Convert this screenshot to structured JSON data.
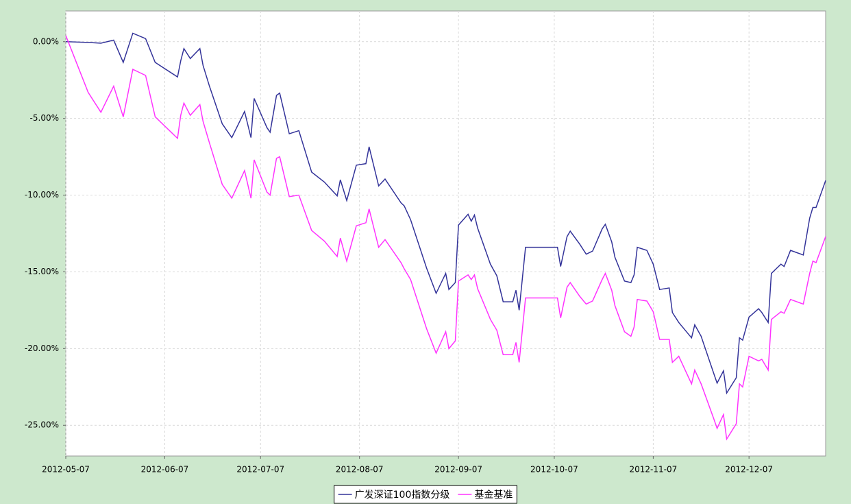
{
  "chart_data": {
    "type": "line",
    "x": [
      "2012-05-07",
      "2012-05-14",
      "2012-05-18",
      "2012-05-22",
      "2012-05-25",
      "2012-05-28",
      "2012-06-01",
      "2012-06-04",
      "2012-06-11",
      "2012-06-12",
      "2012-06-13",
      "2012-06-15",
      "2012-06-18",
      "2012-06-19",
      "2012-06-21",
      "2012-06-25",
      "2012-06-28",
      "2012-07-02",
      "2012-07-04",
      "2012-07-05",
      "2012-07-09",
      "2012-07-10",
      "2012-07-12",
      "2012-07-13",
      "2012-07-16",
      "2012-07-19",
      "2012-07-23",
      "2012-07-27",
      "2012-07-31",
      "2012-08-01",
      "2012-08-03",
      "2012-08-06",
      "2012-08-09",
      "2012-08-10",
      "2012-08-13",
      "2012-08-15",
      "2012-08-20",
      "2012-08-21",
      "2012-08-23",
      "2012-08-28",
      "2012-08-31",
      "2012-09-03",
      "2012-09-04",
      "2012-09-06",
      "2012-09-07",
      "2012-09-10",
      "2012-09-11",
      "2012-09-12",
      "2012-09-13",
      "2012-09-17",
      "2012-09-19",
      "2012-09-21",
      "2012-09-24",
      "2012-09-25",
      "2012-09-26",
      "2012-09-28",
      "2012-10-08",
      "2012-10-09",
      "2012-10-11",
      "2012-10-12",
      "2012-10-15",
      "2012-10-17",
      "2012-10-19",
      "2012-10-22",
      "2012-10-23",
      "2012-10-25",
      "2012-10-26",
      "2012-10-29",
      "2012-10-31",
      "2012-11-01",
      "2012-11-02",
      "2012-11-05",
      "2012-11-07",
      "2012-11-09",
      "2012-11-12",
      "2012-11-13",
      "2012-11-15",
      "2012-11-19",
      "2012-11-20",
      "2012-11-22",
      "2012-11-26",
      "2012-11-27",
      "2012-11-29",
      "2012-11-30",
      "2012-12-03",
      "2012-12-04",
      "2012-12-05",
      "2012-12-07",
      "2012-12-10",
      "2012-12-11",
      "2012-12-13",
      "2012-12-14",
      "2012-12-17",
      "2012-12-18",
      "2012-12-20",
      "2012-12-24",
      "2012-12-26",
      "2012-12-27",
      "2012-12-28",
      "2012-12-31"
    ],
    "series": [
      {
        "name": "广发深证100指数分级",
        "color": "#333399",
        "values": [
          0,
          -0.05,
          -0.1,
          0.1,
          -1.35,
          0.55,
          0.2,
          -1.35,
          -2.3,
          -1.25,
          -0.45,
          -1.1,
          -0.45,
          -1.55,
          -2.9,
          -5.35,
          -6.25,
          -4.55,
          -6.25,
          -3.7,
          -5.6,
          -5.9,
          -3.5,
          -3.35,
          -6.0,
          -5.8,
          -8.5,
          -9.15,
          -10.05,
          -9.0,
          -10.35,
          -8.05,
          -7.95,
          -6.85,
          -9.4,
          -8.95,
          -10.5,
          -10.7,
          -11.6,
          -14.75,
          -16.4,
          -15.1,
          -16.15,
          -15.7,
          -11.95,
          -11.25,
          -11.7,
          -11.3,
          -12.15,
          -14.5,
          -15.25,
          -16.95,
          -16.95,
          -16.2,
          -17.5,
          -13.4,
          -13.4,
          -14.65,
          -12.7,
          -12.35,
          -13.2,
          -13.85,
          -13.65,
          -12.2,
          -11.9,
          -13.05,
          -14.05,
          -15.6,
          -15.7,
          -15.2,
          -13.4,
          -13.6,
          -14.5,
          -16.15,
          -16.05,
          -17.65,
          -18.3,
          -19.3,
          -18.45,
          -19.2,
          -21.65,
          -22.25,
          -21.45,
          -22.9,
          -21.9,
          -19.3,
          -19.45,
          -17.95,
          -17.4,
          -17.65,
          -18.3,
          -15.1,
          -14.5,
          -14.65,
          -13.6,
          -13.9,
          -11.5,
          -10.8,
          -10.8,
          -9.05
        ]
      },
      {
        "name": "基金基准",
        "color": "#ff33ff",
        "values": [
          0.4,
          -3.3,
          -4.6,
          -2.9,
          -4.9,
          -1.8,
          -2.2,
          -4.9,
          -6.3,
          -4.8,
          -4.0,
          -4.8,
          -4.1,
          -5.2,
          -6.6,
          -9.3,
          -10.2,
          -8.4,
          -10.2,
          -7.7,
          -9.8,
          -10.0,
          -7.6,
          -7.5,
          -10.1,
          -10.0,
          -12.3,
          -13.0,
          -14.0,
          -12.8,
          -14.3,
          -12.0,
          -11.8,
          -10.9,
          -13.4,
          -12.9,
          -14.4,
          -14.8,
          -15.5,
          -18.7,
          -20.3,
          -18.9,
          -20.0,
          -19.5,
          -15.6,
          -15.2,
          -15.5,
          -15.2,
          -16.1,
          -18.1,
          -18.8,
          -20.4,
          -20.4,
          -19.6,
          -20.9,
          -16.7,
          -16.7,
          -18.0,
          -16.0,
          -15.7,
          -16.6,
          -17.1,
          -16.9,
          -15.5,
          -15.1,
          -16.2,
          -17.2,
          -18.9,
          -19.2,
          -18.6,
          -16.8,
          -16.9,
          -17.6,
          -19.4,
          -19.4,
          -20.9,
          -20.5,
          -22.3,
          -21.4,
          -22.3,
          -24.6,
          -25.2,
          -24.3,
          -25.9,
          -24.9,
          -22.3,
          -22.5,
          -20.5,
          -20.8,
          -20.7,
          -21.4,
          -18.1,
          -17.6,
          -17.7,
          -16.8,
          -17.1,
          -15.1,
          -14.3,
          -14.4,
          -12.7
        ]
      }
    ],
    "xlim": [
      "2012-05-07",
      "2012-12-31"
    ],
    "xticks": [
      "2012-05-07",
      "2012-06-07",
      "2012-07-07",
      "2012-08-07",
      "2012-09-07",
      "2012-10-07",
      "2012-11-07",
      "2012-12-07"
    ],
    "ylim": [
      -27,
      2
    ],
    "yticks": [
      {
        "value": 0,
        "label": "0.00%"
      },
      {
        "value": -5,
        "label": "-5.00%"
      },
      {
        "value": -10,
        "label": "-10.00%"
      },
      {
        "value": -15,
        "label": "-15.00%"
      },
      {
        "value": -20,
        "label": "-20.00%"
      },
      {
        "value": -25,
        "label": "-25.00%"
      }
    ],
    "grid": true,
    "legend": "bottom"
  }
}
